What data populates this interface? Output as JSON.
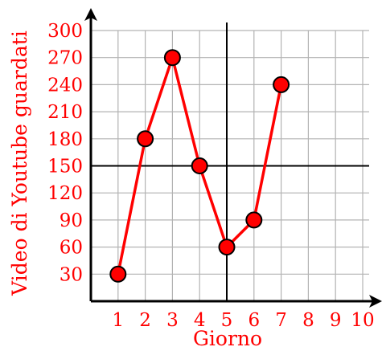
{
  "chart_data": {
    "type": "line",
    "title": "",
    "xlabel": "Giorno",
    "ylabel": "Video di Youtube guardati",
    "x_ticks": [
      1,
      2,
      3,
      4,
      5,
      6,
      7,
      8,
      9,
      10
    ],
    "y_ticks": [
      30,
      60,
      90,
      120,
      150,
      180,
      210,
      240,
      270,
      300
    ],
    "xlim": [
      0,
      10
    ],
    "ylim": [
      0,
      300
    ],
    "grid": true,
    "reference_lines": {
      "x": 5,
      "y": 150
    },
    "series": [
      {
        "x": [
          1,
          2,
          3,
          4,
          5,
          6,
          7
        ],
        "y": [
          30,
          180,
          270,
          150,
          60,
          90,
          240
        ],
        "color": "#ff0000",
        "marker_fill": "#ff0000",
        "marker_stroke": "#000000"
      }
    ],
    "text_color": "#ff0000",
    "grid_color": "#b3b3b3",
    "axis_color": "#000000"
  }
}
